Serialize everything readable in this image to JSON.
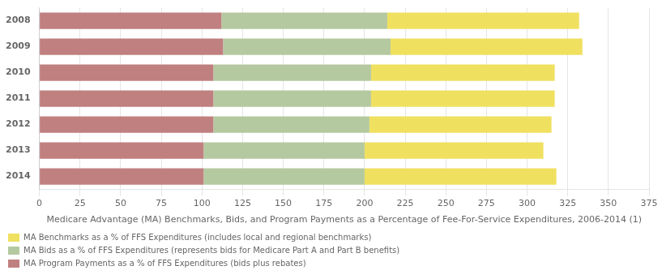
{
  "chart_data": {
    "type": "bar",
    "orientation": "horizontal",
    "stacked": true,
    "xlabel": "Medicare Advantage (MA) Benchmarks, Bids, and Program Payments as a Percentage of Fee-For-Service Expenditures, 2006-2014 (1)",
    "categories": [
      "2008",
      "2009",
      "2010",
      "2011",
      "2012",
      "2013",
      "2014"
    ],
    "series": [
      {
        "name": "MA Program Payments as a % of FFS Expenditures (bids plus rebates)",
        "color": "#c08080",
        "values": [
          112,
          113,
          107,
          107,
          107,
          101,
          101
        ]
      },
      {
        "name": "MA Bids as a % of FFS Expenditures (represents bids for Medicare Part A and Part B benefits)",
        "color": "#b5c9a0",
        "values": [
          102,
          103,
          97,
          97,
          96,
          99,
          99
        ]
      },
      {
        "name": "MA Benchmarks as a % of FFS Expenditures (includes local and regional benchmarks)",
        "color": "#f0e060",
        "values": [
          118,
          118,
          113,
          113,
          112,
          110,
          118
        ]
      }
    ],
    "xlim": [
      0,
      375
    ],
    "xticks": [
      0,
      25,
      50,
      75,
      100,
      125,
      150,
      175,
      200,
      225,
      250,
      275,
      300,
      325,
      350,
      375
    ],
    "grid": true,
    "legend": "bottom"
  }
}
